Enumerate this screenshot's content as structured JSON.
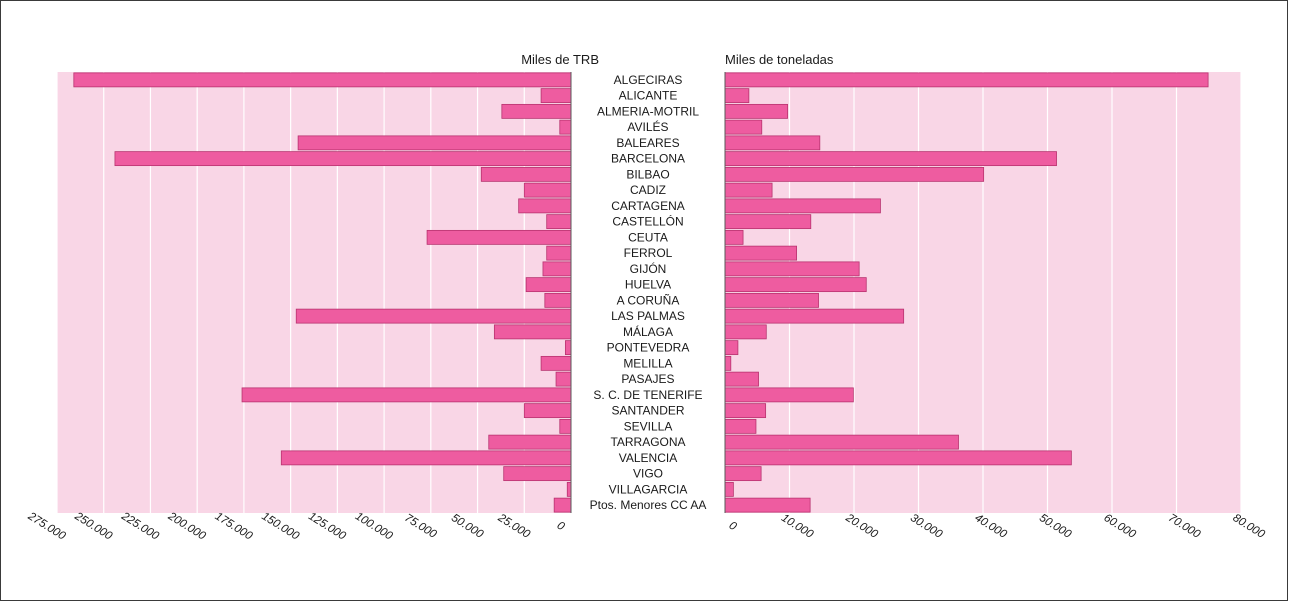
{
  "chart_data": [
    {
      "type": "bar",
      "orientation": "horizontal",
      "direction": "right-to-left",
      "title": "Miles de TRB",
      "xlim": [
        0,
        275000
      ],
      "ticks": [
        0,
        25000,
        50000,
        75000,
        100000,
        125000,
        150000,
        175000,
        200000,
        225000,
        250000,
        275000
      ],
      "tick_labels": [
        "0",
        "25.000",
        "50.000",
        "75.000",
        "100.000",
        "125.000",
        "150.000",
        "175.000",
        "200.000",
        "225.000",
        "250.000",
        "275.000"
      ],
      "grid": true,
      "colors": {
        "bar": "#ee5ca0",
        "bar_edge": "#b8336f",
        "background": "#f9d6e6",
        "grid": "#ffffff"
      },
      "categories": [
        "ALGECIRAS",
        "ALICANTE",
        "ALMERIA-MOTRIL",
        "AVILÉS",
        "BALEARES",
        "BARCELONA",
        "BILBAO",
        "CADIZ",
        "CARTAGENA",
        "CASTELLÓN",
        "CEUTA",
        "FERROL",
        "GIJÓN",
        "HUELVA",
        "A CORUÑA",
        "LAS PALMAS",
        "MÁLAGA",
        "PONTEVEDRA",
        "MELILLA",
        "PASAJES",
        "S. C. DE TENERIFE",
        "SANTANDER",
        "SEVILLA",
        "TARRAGONA",
        "VALENCIA",
        "VIGO",
        "VILLAGARCIA",
        "Ptos. Menores CC AA"
      ],
      "values": [
        266000,
        16000,
        37000,
        6000,
        146000,
        244000,
        48000,
        25000,
        28000,
        13000,
        77000,
        13000,
        15000,
        24000,
        14000,
        147000,
        41000,
        3000,
        16000,
        8000,
        176000,
        25000,
        6000,
        44000,
        155000,
        36000,
        2000,
        9000
      ]
    },
    {
      "type": "bar",
      "orientation": "horizontal",
      "direction": "left-to-right",
      "title": "Miles de toneladas",
      "xlim": [
        0,
        80000
      ],
      "ticks": [
        0,
        10000,
        20000,
        30000,
        40000,
        50000,
        60000,
        70000,
        80000
      ],
      "tick_labels": [
        "0",
        "10.000",
        "20.000",
        "30.000",
        "40.000",
        "50.000",
        "60.000",
        "70.000",
        "80.000"
      ],
      "grid": true,
      "colors": {
        "bar": "#ee5ca0",
        "bar_edge": "#b8336f",
        "background": "#f9d6e6",
        "grid": "#ffffff"
      },
      "categories": [
        "ALGECIRAS",
        "ALICANTE",
        "ALMERIA-MOTRIL",
        "AVILÉS",
        "BALEARES",
        "BARCELONA",
        "BILBAO",
        "CADIZ",
        "CARTAGENA",
        "CASTELLÓN",
        "CEUTA",
        "FERROL",
        "GIJÓN",
        "HUELVA",
        "A CORUÑA",
        "LAS PALMAS",
        "MÁLAGA",
        "PONTEVEDRA",
        "MELILLA",
        "PASAJES",
        "S. C. DE TENERIFE",
        "SANTANDER",
        "SEVILLA",
        "TARRAGONA",
        "VALENCIA",
        "VIGO",
        "VILLAGARCIA",
        "Ptos. Menores CC AA"
      ],
      "values": [
        74900,
        3700,
        9700,
        5700,
        14700,
        51400,
        40100,
        7300,
        24100,
        13300,
        2800,
        11100,
        20800,
        21900,
        14500,
        27700,
        6400,
        2000,
        900,
        5200,
        19900,
        6300,
        4800,
        36200,
        53700,
        5600,
        1300,
        13200
      ]
    }
  ]
}
